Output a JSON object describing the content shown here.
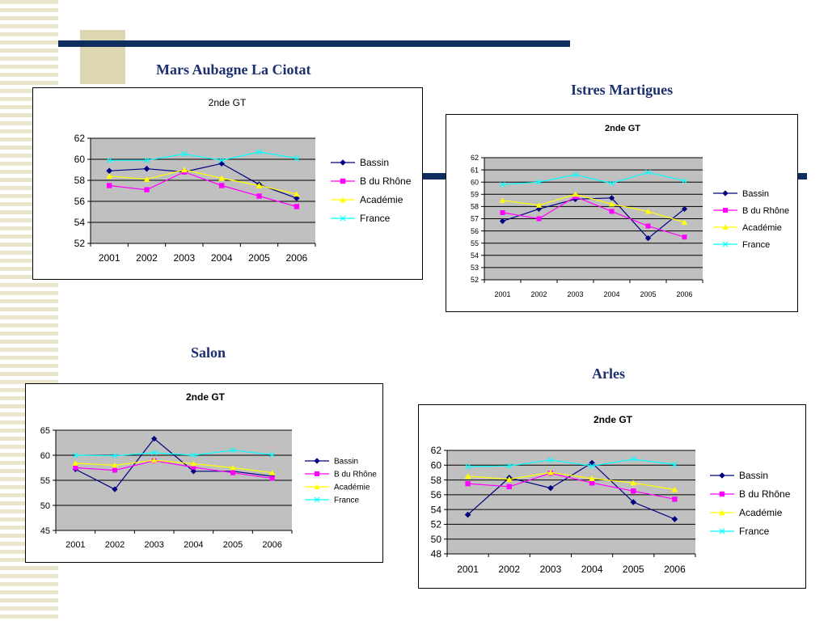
{
  "regions": {
    "r1": "Mars Aubagne La Ciotat",
    "r2": "Istres Martigues",
    "r3": "Salon",
    "r4": "Arles"
  },
  "colors": {
    "Bassin": "#000080",
    "B du Rhône": "#ff00ff",
    "Académie": "#ffff00",
    "France": "#00ffff",
    "plot_bg": "#c0c0c0",
    "titles": "#1c2f6e",
    "rule": "#0f2d5e"
  },
  "chart_data": [
    {
      "type": "line",
      "title": "2nde GT",
      "categories": [
        "2001",
        "2002",
        "2003",
        "2004",
        "2005",
        "2006"
      ],
      "ylim": [
        52,
        62
      ],
      "yticks": [
        52,
        54,
        56,
        58,
        60,
        62
      ],
      "legend_position": "right",
      "grid": true,
      "series": [
        {
          "name": "Bassin",
          "marker": "diamond",
          "values": [
            58.9,
            59.1,
            58.8,
            59.6,
            57.6,
            56.3
          ]
        },
        {
          "name": "B du Rhône",
          "marker": "square",
          "values": [
            57.5,
            57.1,
            58.8,
            57.5,
            56.5,
            55.5
          ]
        },
        {
          "name": "Académie",
          "marker": "triangle",
          "values": [
            58.4,
            58.1,
            59.0,
            58.2,
            57.5,
            56.7
          ]
        },
        {
          "name": "France",
          "marker": "x",
          "values": [
            59.9,
            59.9,
            60.5,
            59.9,
            60.7,
            60.1
          ]
        }
      ]
    },
    {
      "type": "line",
      "title": "2nde GT",
      "categories": [
        "2001",
        "2002",
        "2003",
        "2004",
        "2005",
        "2006"
      ],
      "ylim": [
        52,
        62
      ],
      "yticks": [
        52,
        53,
        54,
        55,
        56,
        57,
        58,
        59,
        60,
        61,
        62
      ],
      "legend_position": "right",
      "grid": true,
      "series": [
        {
          "name": "Bassin",
          "marker": "diamond",
          "values": [
            56.8,
            57.8,
            58.6,
            58.7,
            55.4,
            57.8
          ]
        },
        {
          "name": "B du Rhône",
          "marker": "square",
          "values": [
            57.5,
            57.0,
            58.8,
            57.6,
            56.4,
            55.5
          ]
        },
        {
          "name": "Académie",
          "marker": "triangle",
          "values": [
            58.5,
            58.1,
            59.0,
            58.2,
            57.6,
            56.7
          ]
        },
        {
          "name": "France",
          "marker": "x",
          "values": [
            59.8,
            60.0,
            60.6,
            59.9,
            60.8,
            60.1
          ]
        }
      ]
    },
    {
      "type": "line",
      "title": "2nde GT",
      "categories": [
        "2001",
        "2002",
        "2003",
        "2004",
        "2005",
        "2006"
      ],
      "ylim": [
        45,
        65
      ],
      "yticks": [
        45,
        50,
        55,
        60,
        65
      ],
      "legend_position": "right",
      "grid": true,
      "series": [
        {
          "name": "Bassin",
          "marker": "diamond",
          "values": [
            57.2,
            53.2,
            63.3,
            56.8,
            56.8,
            55.8
          ]
        },
        {
          "name": "B du Rhône",
          "marker": "square",
          "values": [
            57.5,
            57.0,
            58.9,
            57.6,
            56.5,
            55.4
          ]
        },
        {
          "name": "Académie",
          "marker": "triangle",
          "values": [
            58.4,
            58.0,
            59.0,
            58.3,
            57.5,
            56.5
          ]
        },
        {
          "name": "France",
          "marker": "x",
          "values": [
            60.0,
            59.9,
            60.5,
            60.0,
            61.0,
            60.1
          ]
        }
      ]
    },
    {
      "type": "line",
      "title": "2nde GT",
      "categories": [
        "2001",
        "2002",
        "2003",
        "2004",
        "2005",
        "2006"
      ],
      "ylim": [
        48,
        62
      ],
      "yticks": [
        48,
        50,
        52,
        54,
        56,
        58,
        60,
        62
      ],
      "legend_position": "right",
      "grid": true,
      "series": [
        {
          "name": "Bassin",
          "marker": "diamond",
          "values": [
            53.3,
            58.3,
            56.9,
            60.3,
            55.0,
            52.7
          ]
        },
        {
          "name": "B du Rhône",
          "marker": "square",
          "values": [
            57.5,
            57.1,
            58.9,
            57.6,
            56.5,
            55.4
          ]
        },
        {
          "name": "Académie",
          "marker": "triangle",
          "values": [
            58.5,
            58.1,
            59.0,
            58.2,
            57.6,
            56.7
          ]
        },
        {
          "name": "France",
          "marker": "x",
          "values": [
            59.8,
            59.9,
            60.7,
            59.9,
            60.8,
            60.1
          ]
        }
      ]
    }
  ]
}
